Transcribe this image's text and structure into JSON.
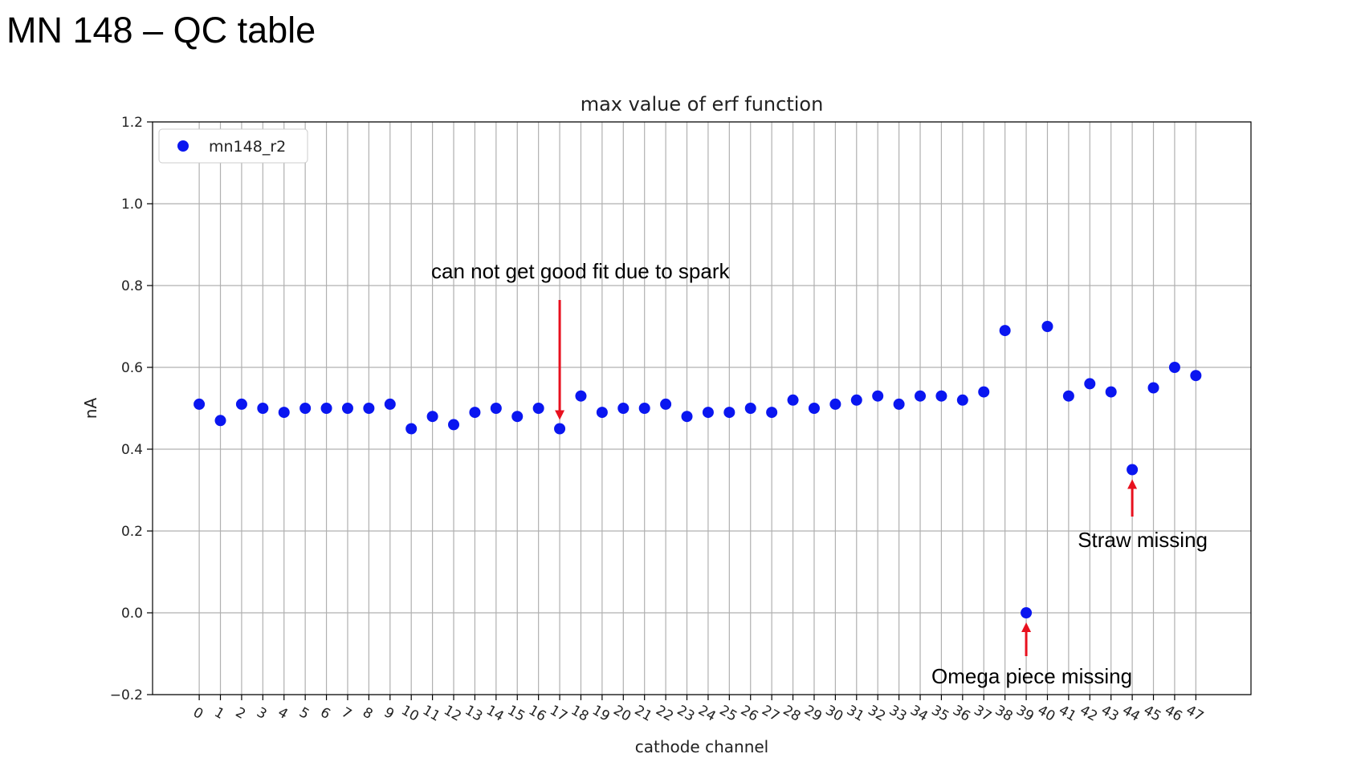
{
  "slide_title": "MN 148 – QC table",
  "colors": {
    "point": "#0a16f0",
    "arrow": "#e8101e",
    "grid": "#b0b0b0"
  },
  "chart_data": {
    "type": "scatter",
    "title": "max value of erf function",
    "xlabel": "cathode channel",
    "ylabel": "nA",
    "ylim": [
      -0.2,
      1.2
    ],
    "yticks": [
      -0.2,
      0.0,
      0.2,
      0.4,
      0.6,
      0.8,
      1.0,
      1.2
    ],
    "ytick_labels": [
      "−0.2",
      "0.0",
      "0.2",
      "0.4",
      "0.6",
      "0.8",
      "1.0",
      "1.2"
    ],
    "grid": true,
    "legend_position": "top-left",
    "x": [
      0,
      1,
      2,
      3,
      4,
      5,
      6,
      7,
      8,
      9,
      10,
      11,
      12,
      13,
      14,
      15,
      16,
      17,
      18,
      19,
      20,
      21,
      22,
      23,
      24,
      25,
      26,
      27,
      28,
      29,
      30,
      31,
      32,
      33,
      34,
      35,
      36,
      37,
      38,
      39,
      40,
      41,
      42,
      43,
      44,
      45,
      46,
      47
    ],
    "x_tick_labels": [
      "0",
      "1",
      "2",
      "3",
      "4",
      "5",
      "6",
      "7",
      "8",
      "9",
      "10",
      "11",
      "12",
      "13",
      "14",
      "15",
      "16",
      "17",
      "18",
      "19",
      "20",
      "21",
      "22",
      "23",
      "24",
      "25",
      "26",
      "27",
      "28",
      "29",
      "30",
      "31",
      "32",
      "33",
      "34",
      "35",
      "36",
      "37",
      "38",
      "39",
      "40",
      "41",
      "42",
      "43",
      "44",
      "45",
      "46",
      "47"
    ],
    "series": [
      {
        "name": "mn148_r2",
        "y": [
          0.51,
          0.47,
          0.51,
          0.5,
          0.49,
          0.5,
          0.5,
          0.5,
          0.5,
          0.51,
          0.45,
          0.48,
          0.46,
          0.49,
          0.5,
          0.48,
          0.5,
          0.45,
          0.53,
          0.49,
          0.5,
          0.5,
          0.51,
          0.48,
          0.49,
          0.49,
          0.5,
          0.49,
          0.52,
          0.5,
          0.51,
          0.52,
          0.53,
          0.51,
          0.53,
          0.53,
          0.52,
          0.54,
          0.69,
          0.0,
          0.7,
          0.53,
          0.56,
          0.54,
          0.35,
          0.55,
          0.6,
          0.58
        ]
      }
    ],
    "annotations": [
      {
        "text": "can not get good fit due to spark",
        "channel": 17
      },
      {
        "text": "Omega piece missing",
        "channel": 39
      },
      {
        "text": "Straw missing",
        "channel": 44
      }
    ]
  }
}
